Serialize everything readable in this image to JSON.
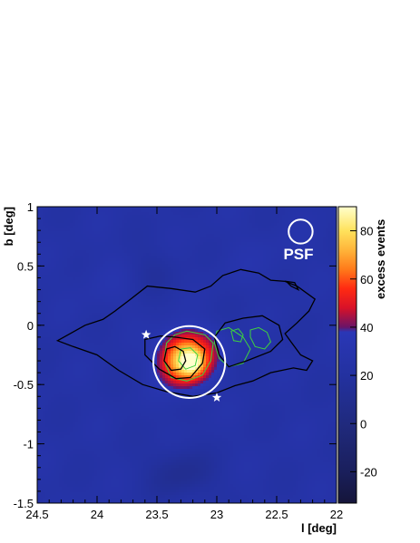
{
  "chart_data": {
    "type": "heatmap",
    "xlabel": "l [deg]",
    "ylabel": "b [deg]",
    "colorbar_label": "excess events",
    "xlim": [
      24.5,
      22
    ],
    "ylim": [
      -1.5,
      1
    ],
    "zlim": [
      -33,
      90
    ],
    "x_ticks": [
      "24.5",
      "24",
      "23.5",
      "23",
      "22.5",
      "22"
    ],
    "y_ticks": [
      "1",
      "0.5",
      "0",
      "-0.5",
      "-1",
      "-1.5"
    ],
    "colorbar_ticks": [
      "80",
      "60",
      "40",
      "20",
      "0",
      "-20"
    ],
    "psf_label": "PSF",
    "colorscale": [
      {
        "v": -33,
        "color": "#15153a"
      },
      {
        "v": -20,
        "color": "#1a1f5c"
      },
      {
        "v": 0,
        "color": "#202a7e"
      },
      {
        "v": 20,
        "color": "#2331a0"
      },
      {
        "v": 38,
        "color": "#2a37b6"
      },
      {
        "v": 40,
        "color": "#6a1468"
      },
      {
        "v": 48,
        "color": "#d81228"
      },
      {
        "v": 56,
        "color": "#ff2a12"
      },
      {
        "v": 64,
        "color": "#ff7a1a"
      },
      {
        "v": 72,
        "color": "#ffb43a"
      },
      {
        "v": 80,
        "color": "#ffe25c"
      },
      {
        "v": 90,
        "color": "#ffffcc"
      }
    ],
    "hotspots": [
      {
        "l": 23.27,
        "b": -0.29,
        "amp": 58,
        "sl": 0.14,
        "sb": 0.15
      },
      {
        "l": 23.2,
        "b": -0.32,
        "amp": 25,
        "sl": 0.06,
        "sb": 0.06
      },
      {
        "l": 23.05,
        "b": -0.2,
        "amp": 6,
        "sl": 0.15,
        "sb": 0.15
      },
      {
        "l": 23.85,
        "b": 0.35,
        "amp": 4,
        "sl": 0.25,
        "sb": 0.2
      },
      {
        "l": 22.6,
        "b": 0.55,
        "amp": 3,
        "sl": 0.3,
        "sb": 0.2
      },
      {
        "l": 23.3,
        "b": -1.25,
        "amp": -14,
        "sl": 0.2,
        "sb": 0.15
      },
      {
        "l": 23.55,
        "b": 0.45,
        "amp": -8,
        "sl": 0.15,
        "sb": 0.15
      }
    ],
    "background_level": 25,
    "white_circle": {
      "l": 23.23,
      "b": -0.31,
      "r": 0.3
    },
    "psf_circle": {
      "l": 22.3,
      "b": 0.79,
      "r": 0.1
    },
    "stars": [
      {
        "l": 23.59,
        "b": -0.08
      },
      {
        "l": 23.0,
        "b": -0.61
      }
    ],
    "black_contours": [
      [
        [
          24.33,
          -0.13
        ],
        [
          24.1,
          0.0
        ],
        [
          23.95,
          0.05
        ],
        [
          23.85,
          0.12
        ],
        [
          23.72,
          0.22
        ],
        [
          23.58,
          0.33
        ],
        [
          23.38,
          0.31
        ],
        [
          23.18,
          0.28
        ],
        [
          23.05,
          0.33
        ],
        [
          22.95,
          0.42
        ],
        [
          22.8,
          0.47
        ],
        [
          22.65,
          0.44
        ],
        [
          22.55,
          0.38
        ],
        [
          22.43,
          0.37
        ],
        [
          22.33,
          0.33
        ],
        [
          22.18,
          0.22
        ],
        [
          22.23,
          0.12
        ],
        [
          22.33,
          0.02
        ],
        [
          22.43,
          -0.07
        ],
        [
          22.38,
          -0.14
        ],
        [
          22.3,
          -0.25
        ],
        [
          22.2,
          -0.3
        ],
        [
          22.25,
          -0.38
        ],
        [
          22.36,
          -0.36
        ],
        [
          22.55,
          -0.4
        ],
        [
          22.7,
          -0.47
        ],
        [
          22.85,
          -0.51
        ],
        [
          23.0,
          -0.57
        ],
        [
          23.2,
          -0.6
        ],
        [
          23.42,
          -0.56
        ],
        [
          23.62,
          -0.5
        ],
        [
          23.82,
          -0.38
        ],
        [
          24.0,
          -0.25
        ],
        [
          24.2,
          -0.18
        ],
        [
          24.33,
          -0.13
        ]
      ],
      [
        [
          22.93,
          0.02
        ],
        [
          22.78,
          0.06
        ],
        [
          22.62,
          0.08
        ],
        [
          22.48,
          0.0
        ],
        [
          22.45,
          -0.12
        ],
        [
          22.55,
          -0.22
        ],
        [
          22.75,
          -0.3
        ],
        [
          22.9,
          -0.35
        ],
        [
          22.98,
          -0.25
        ],
        [
          23.02,
          -0.1
        ],
        [
          22.93,
          0.02
        ]
      ],
      [
        [
          23.6,
          -0.12
        ],
        [
          23.47,
          -0.09
        ],
        [
          23.35,
          -0.1
        ],
        [
          23.2,
          -0.12
        ],
        [
          23.1,
          -0.2
        ],
        [
          23.12,
          -0.32
        ],
        [
          23.22,
          -0.44
        ],
        [
          23.34,
          -0.45
        ],
        [
          23.48,
          -0.37
        ],
        [
          23.6,
          -0.25
        ],
        [
          23.6,
          -0.12
        ]
      ],
      [
        [
          23.42,
          -0.2
        ],
        [
          23.35,
          -0.18
        ],
        [
          23.28,
          -0.22
        ],
        [
          23.26,
          -0.3
        ],
        [
          23.3,
          -0.37
        ],
        [
          23.38,
          -0.38
        ],
        [
          23.44,
          -0.3
        ],
        [
          23.42,
          -0.2
        ]
      ],
      [
        [
          22.42,
          0.37
        ],
        [
          22.38,
          0.33
        ],
        [
          22.32,
          0.3
        ],
        [
          22.35,
          0.36
        ],
        [
          22.42,
          0.37
        ]
      ]
    ],
    "green_contours": [
      [
        [
          23.35,
          -0.08
        ],
        [
          23.25,
          -0.05
        ],
        [
          23.1,
          -0.08
        ],
        [
          23.03,
          -0.15
        ],
        [
          23.05,
          -0.3
        ],
        [
          23.12,
          -0.42
        ],
        [
          23.25,
          -0.47
        ],
        [
          23.38,
          -0.44
        ],
        [
          23.44,
          -0.3
        ],
        [
          23.42,
          -0.15
        ],
        [
          23.35,
          -0.08
        ]
      ],
      [
        [
          23.3,
          -0.2
        ],
        [
          23.22,
          -0.19
        ],
        [
          23.16,
          -0.25
        ],
        [
          23.18,
          -0.34
        ],
        [
          23.26,
          -0.37
        ],
        [
          23.32,
          -0.3
        ],
        [
          23.3,
          -0.2
        ]
      ],
      [
        [
          23.0,
          -0.05
        ],
        [
          22.9,
          -0.02
        ],
        [
          22.78,
          -0.1
        ],
        [
          22.72,
          -0.2
        ],
        [
          22.78,
          -0.32
        ],
        [
          22.9,
          -0.35
        ],
        [
          22.98,
          -0.28
        ],
        [
          23.02,
          -0.15
        ],
        [
          23.0,
          -0.05
        ]
      ],
      [
        [
          22.72,
          -0.04
        ],
        [
          22.65,
          -0.02
        ],
        [
          22.58,
          -0.06
        ],
        [
          22.55,
          -0.14
        ],
        [
          22.6,
          -0.2
        ],
        [
          22.68,
          -0.18
        ],
        [
          22.72,
          -0.1
        ],
        [
          22.72,
          -0.04
        ]
      ],
      [
        [
          22.88,
          -0.05
        ],
        [
          22.82,
          -0.03
        ],
        [
          22.78,
          -0.08
        ],
        [
          22.8,
          -0.14
        ],
        [
          22.86,
          -0.13
        ],
        [
          22.88,
          -0.05
        ]
      ]
    ]
  }
}
